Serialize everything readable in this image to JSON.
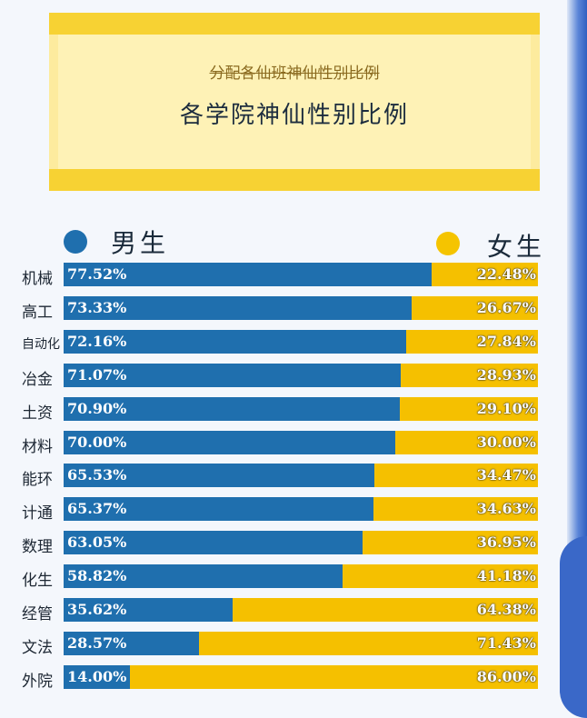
{
  "banner": {
    "struck_title": "分配各仙班神仙性别比例",
    "title": "各学院神仙性别比例"
  },
  "colors": {
    "male": "#1f6fae",
    "female": "#f5c000"
  },
  "chart_data": {
    "type": "bar",
    "orientation": "horizontal-stacked-100",
    "categories": [
      "机械",
      "高工",
      "自动化",
      "冶金",
      "土资",
      "材料",
      "能环",
      "计通",
      "数理",
      "化生",
      "经管",
      "文法",
      "外院"
    ],
    "series": [
      {
        "name": "男生",
        "values": [
          77.52,
          73.33,
          72.16,
          71.07,
          70.9,
          70.0,
          65.53,
          65.37,
          63.05,
          58.82,
          35.62,
          28.57,
          14.0
        ]
      },
      {
        "name": "女生",
        "values": [
          22.48,
          26.67,
          27.84,
          28.93,
          29.1,
          30.0,
          34.47,
          34.63,
          36.95,
          41.18,
          64.38,
          71.43,
          86.0
        ]
      }
    ],
    "value_labels_male": [
      "77.52%",
      "73.33%",
      "72.16%",
      "71.07%",
      "70.90%",
      "70.00%",
      "65.53%",
      "65.37%",
      "63.05%",
      "58.82%",
      "35.62%",
      "28.57%",
      "14.00%"
    ],
    "value_labels_female": [
      "22.48%",
      "26.67%",
      "27.84%",
      "28.93%",
      "29.10%",
      "30.00%",
      "34.47%",
      "34.63%",
      "36.95%",
      "41.18%",
      "64.38%",
      "71.43%",
      "86.00%"
    ],
    "legend": {
      "position": "top"
    }
  }
}
